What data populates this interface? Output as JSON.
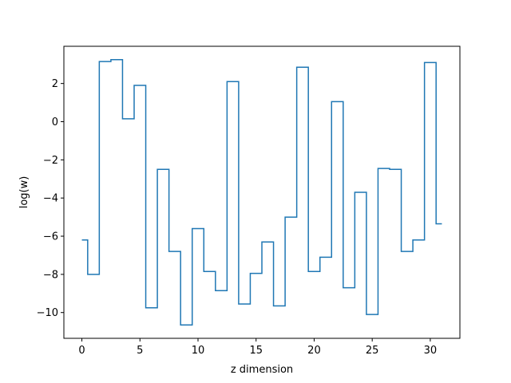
{
  "chart_data": {
    "type": "line",
    "style": "step",
    "title": "",
    "xlabel": "z dimension",
    "ylabel": "log(w)",
    "xlim": [
      -1.55,
      32.55
    ],
    "ylim": [
      -11.35,
      3.95
    ],
    "xticks": [
      0,
      5,
      10,
      15,
      20,
      25,
      30
    ],
    "yticks": [
      -10,
      -8,
      -6,
      -4,
      -2,
      0,
      2
    ],
    "ytick_labels": [
      "−10",
      "−8",
      "−6",
      "−4",
      "−2",
      "0",
      "2"
    ],
    "grid": false,
    "legend": "none",
    "series": [
      {
        "color": "#1f77b4",
        "x": [
          0,
          1,
          2,
          3,
          4,
          5,
          6,
          7,
          8,
          9,
          10,
          11,
          12,
          13,
          14,
          15,
          16,
          17,
          18,
          19,
          20,
          21,
          22,
          23,
          24,
          25,
          26,
          27,
          28,
          29,
          30,
          31
        ],
        "y": [
          -6.2,
          -8.0,
          3.15,
          3.25,
          0.15,
          1.9,
          -9.75,
          -2.5,
          -6.8,
          -10.65,
          -5.6,
          -7.85,
          -8.85,
          2.1,
          -9.55,
          -7.95,
          -6.3,
          -9.65,
          -5.0,
          2.85,
          -7.85,
          -7.1,
          1.05,
          -8.7,
          -3.7,
          -10.1,
          -2.45,
          -2.5,
          -6.8,
          -6.2,
          3.1,
          -5.35
        ]
      }
    ]
  }
}
